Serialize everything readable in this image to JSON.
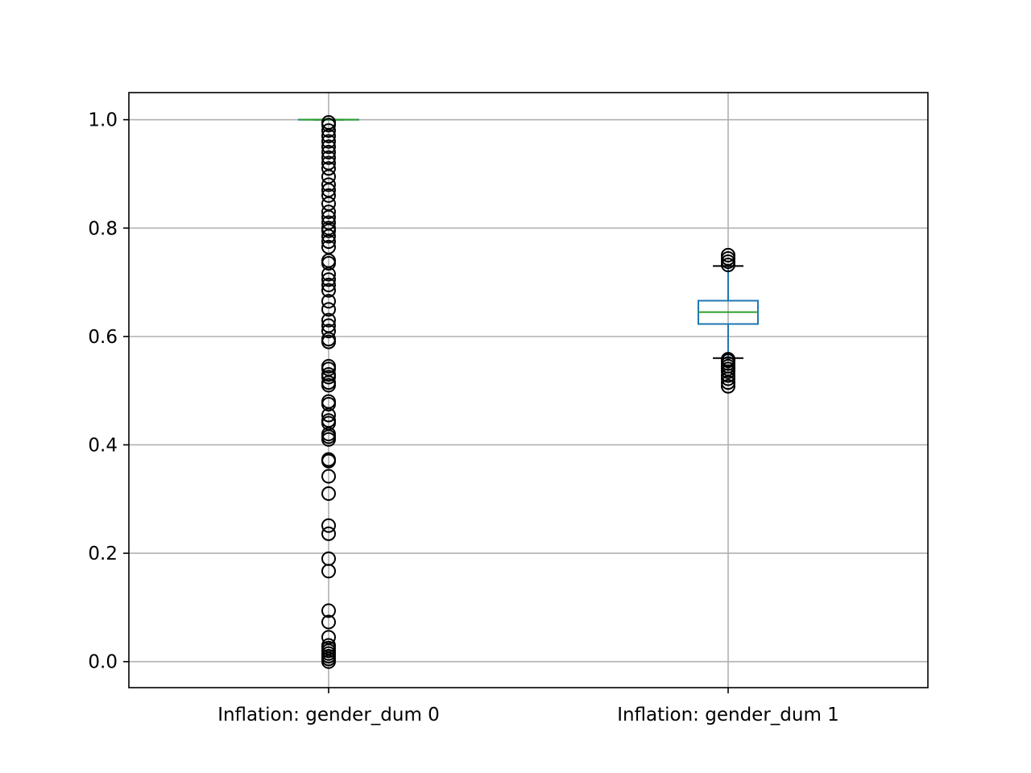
{
  "chart_data": {
    "type": "box",
    "title": "",
    "xlabel": "",
    "ylabel": "",
    "ylim": [
      -0.048,
      1.05
    ],
    "yticks": [
      0.0,
      0.2,
      0.4,
      0.6,
      0.8,
      1.0
    ],
    "ytick_labels": [
      "0.0",
      "0.2",
      "0.4",
      "0.6",
      "0.8",
      "1.0"
    ],
    "grid": true,
    "categories": [
      "Inflation: gender_dum 0",
      "Inflation: gender_dum 1"
    ],
    "boxes": [
      {
        "name": "Inflation: gender_dum 0",
        "q1": 1.0,
        "median": 1.0,
        "q3": 1.0,
        "whisker_low": 1.0,
        "whisker_high": 1.0,
        "outliers": [
          0.0,
          0.005,
          0.01,
          0.015,
          0.02,
          0.025,
          0.03,
          0.045,
          0.073,
          0.094,
          0.167,
          0.19,
          0.236,
          0.251,
          0.31,
          0.342,
          0.37,
          0.373,
          0.41,
          0.415,
          0.42,
          0.44,
          0.445,
          0.455,
          0.475,
          0.48,
          0.51,
          0.515,
          0.525,
          0.53,
          0.54,
          0.545,
          0.59,
          0.595,
          0.61,
          0.62,
          0.63,
          0.65,
          0.665,
          0.685,
          0.695,
          0.705,
          0.715,
          0.735,
          0.74,
          0.765,
          0.775,
          0.785,
          0.795,
          0.8,
          0.81,
          0.82,
          0.83,
          0.845,
          0.86,
          0.87,
          0.88,
          0.895,
          0.91,
          0.92,
          0.93,
          0.94,
          0.95,
          0.96,
          0.97,
          0.98,
          0.99,
          0.995
        ]
      },
      {
        "name": "Inflation: gender_dum 1",
        "q1": 0.623,
        "median": 0.645,
        "q3": 0.666,
        "whisker_low": 0.56,
        "whisker_high": 0.73,
        "outliers": [
          0.508,
          0.515,
          0.522,
          0.528,
          0.535,
          0.54,
          0.545,
          0.55,
          0.555,
          0.558,
          0.732,
          0.738,
          0.744,
          0.75
        ]
      }
    ],
    "colors": {
      "box": "#1f77b4",
      "median": "#2ca02c",
      "whisker": "#1f77b4",
      "cap": "#000000",
      "flier": "#000000",
      "grid": "#b0b0b0"
    }
  }
}
